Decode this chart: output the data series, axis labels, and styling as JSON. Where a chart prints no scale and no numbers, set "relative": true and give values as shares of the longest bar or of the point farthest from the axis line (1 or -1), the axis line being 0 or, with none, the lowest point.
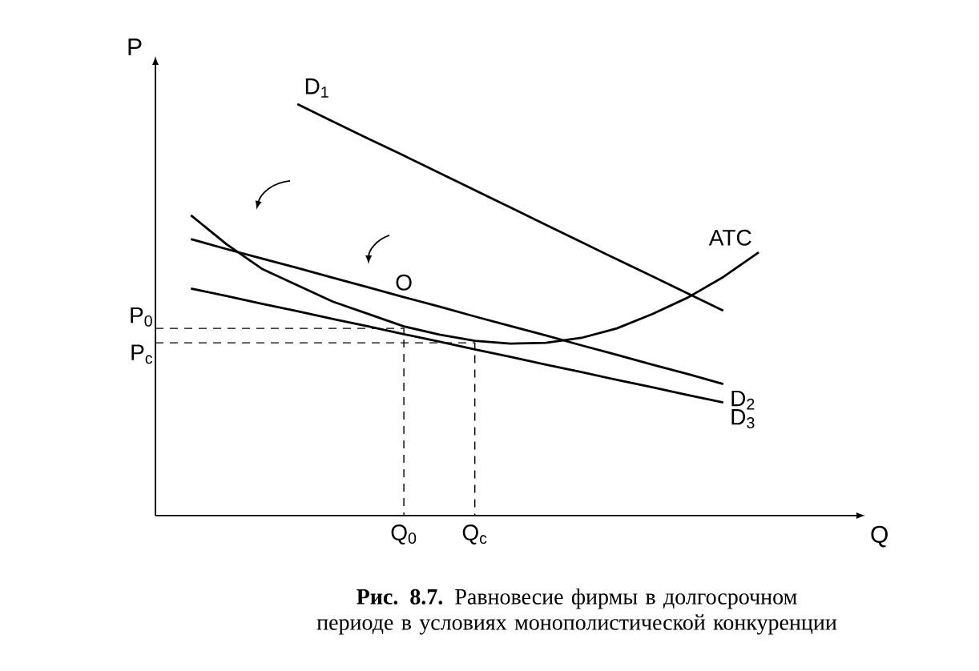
{
  "chart_data": {
    "type": "line",
    "relative": true,
    "marker": "none",
    "title": "**Рис. 8.7.** Равновесие фирмы в долгосрочном периоде в условиях монополистической конкуренции",
    "xlabel": "Q",
    "ylabel": "P",
    "categories": [
      null,
      null,
      null,
      null,
      null,
      null,
      null,
      "Q$_{0}$",
      null,
      "Q$_{c}$",
      null,
      null,
      null,
      null,
      null,
      null,
      null,
      null,
      null,
      null,
      null
    ],
    "series": [
      {
        "name": "D$_{1}$",
        "color": "#000000",
        "values": [
          null,
          null,
          null,
          null,
          1,
          0.958,
          0.916,
          0.875,
          0.833,
          0.791,
          0.749,
          0.707,
          0.665,
          0.623,
          0.582,
          0.54,
          0.498,
          null,
          null,
          null,
          null
        ]
      },
      {
        "name": "D$_{2}$",
        "color": "#000000",
        "values": [
          null,
          0.672,
          0.648,
          0.625,
          0.602,
          0.578,
          0.555,
          0.531,
          0.508,
          0.484,
          0.461,
          0.438,
          0.414,
          0.391,
          0.367,
          0.344,
          0.32,
          null,
          null,
          null,
          null
        ]
      },
      {
        "name": "D$_{3}$",
        "color": "#000000",
        "values": [
          null,
          0.552,
          0.534,
          0.515,
          0.497,
          0.478,
          0.46,
          0.441,
          0.423,
          0.404,
          0.386,
          0.367,
          0.349,
          0.33,
          0.312,
          0.293,
          0.275,
          null,
          null,
          null,
          null
        ]
      },
      {
        "name": "ATC",
        "color": "#000000",
        "values": [
          null,
          0.73,
          0.66,
          0.6,
          0.56,
          0.52,
          0.49,
          0.46,
          0.44,
          0.425,
          0.418,
          0.42,
          0.432,
          0.455,
          0.49,
          0.53,
          0.58,
          0.64,
          null,
          null,
          null
        ]
      }
    ],
    "ref_lines": [
      {
        "axis": "y",
        "value": 0.455,
        "label": "P$_{0}$",
        "color": "#000000",
        "line_style": "dashed"
      },
      {
        "axis": "y",
        "value": 0.42,
        "label": "P$_{c}$",
        "color": "#000000",
        "line_style": "dashed"
      }
    ],
    "annotations": [
      {
        "text": "O",
        "x": "Q$_{0}$",
        "y": 0.531
      }
    ]
  }
}
